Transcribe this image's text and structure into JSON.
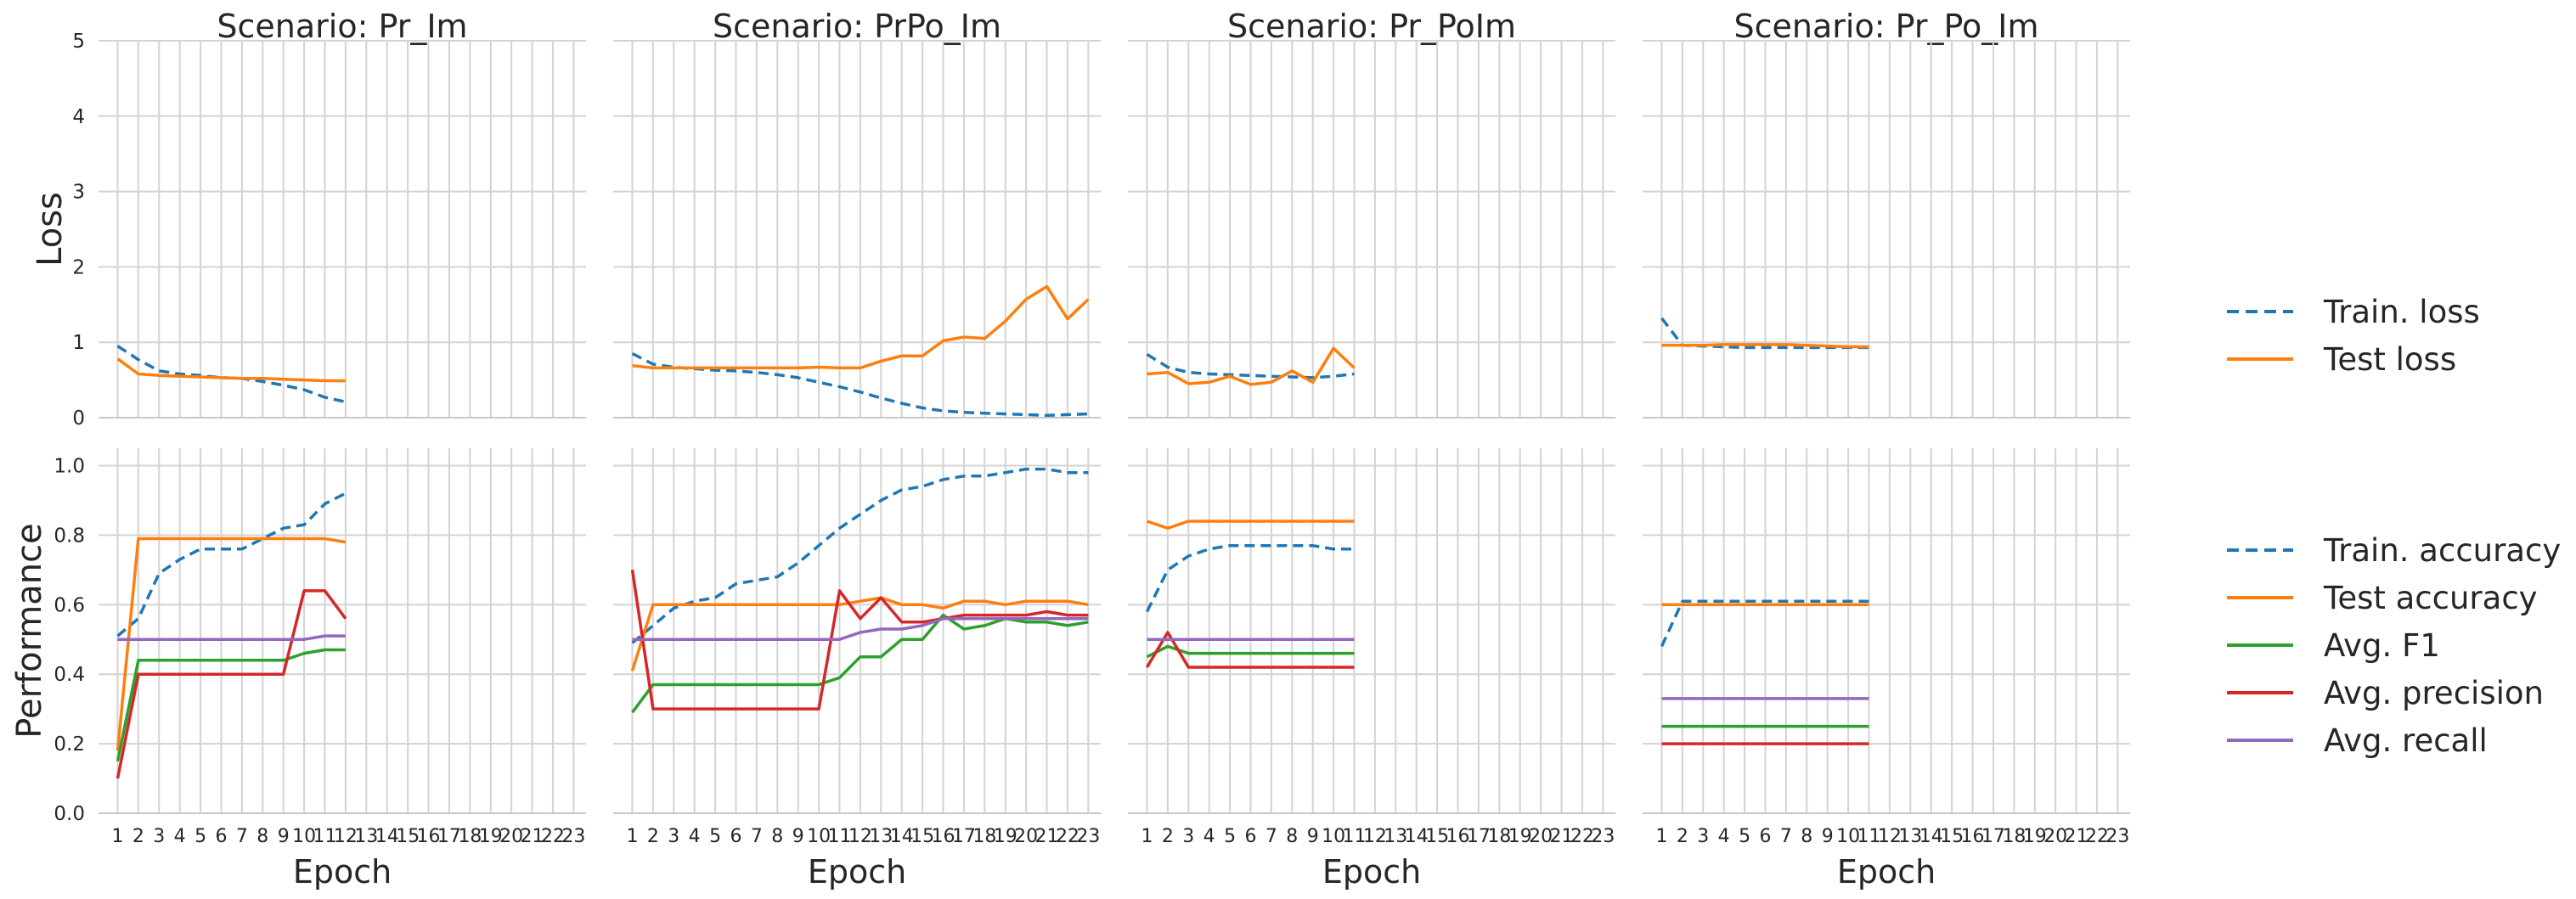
{
  "chart_data": {
    "type": "line",
    "grid": true,
    "x_ticks": [
      "1",
      "2",
      "3",
      "4",
      "5",
      "6",
      "7",
      "8",
      "9",
      "10",
      "11",
      "12",
      "13",
      "14",
      "15",
      "16",
      "17",
      "18",
      "19",
      "20",
      "21",
      "22",
      "23"
    ],
    "xlabel": "Epoch",
    "rows": [
      {
        "ylabel": "Loss",
        "ylim": [
          0,
          5
        ],
        "yticks": [
          "0",
          "1",
          "2",
          "3",
          "4",
          "5"
        ]
      },
      {
        "ylabel": "Performance",
        "ylim": [
          0,
          1.05
        ],
        "yticks": [
          "0.0",
          "0.2",
          "0.4",
          "0.6",
          "0.8",
          "1.0"
        ]
      }
    ],
    "colors": {
      "blue": "#1f77b4",
      "orange": "#ff7f0e",
      "green": "#2ca02c",
      "red": "#d62728",
      "purple": "#9467bd"
    },
    "legends": [
      {
        "items": [
          {
            "label": "Train. loss",
            "color": "#1f77b4",
            "dashed": true
          },
          {
            "label": "Test loss",
            "color": "#ff7f0e",
            "dashed": false
          }
        ]
      },
      {
        "items": [
          {
            "label": "Train. accuracy",
            "color": "#1f77b4",
            "dashed": true
          },
          {
            "label": "Test accuracy",
            "color": "#ff7f0e",
            "dashed": false
          },
          {
            "label": "Avg. F1",
            "color": "#2ca02c",
            "dashed": false
          },
          {
            "label": "Avg. precision",
            "color": "#d62728",
            "dashed": false
          },
          {
            "label": "Avg. recall",
            "color": "#9467bd",
            "dashed": false
          }
        ]
      }
    ],
    "panels": [
      {
        "title": "Scenario: Pr_Im",
        "loss": {
          "Train. loss": [
            0.95,
            0.77,
            0.62,
            0.58,
            0.56,
            0.53,
            0.52,
            0.48,
            0.43,
            0.37,
            0.27,
            0.21
          ],
          "Test loss": [
            0.78,
            0.58,
            0.56,
            0.55,
            0.54,
            0.53,
            0.52,
            0.52,
            0.51,
            0.5,
            0.49,
            0.49
          ]
        },
        "performance": {
          "Train. accuracy": [
            0.51,
            0.56,
            0.69,
            0.73,
            0.76,
            0.76,
            0.76,
            0.79,
            0.82,
            0.83,
            0.89,
            0.92
          ],
          "Test accuracy": [
            0.18,
            0.79,
            0.79,
            0.79,
            0.79,
            0.79,
            0.79,
            0.79,
            0.79,
            0.79,
            0.79,
            0.78
          ],
          "Avg. F1": [
            0.15,
            0.44,
            0.44,
            0.44,
            0.44,
            0.44,
            0.44,
            0.44,
            0.44,
            0.46,
            0.47,
            0.47
          ],
          "Avg. precision": [
            0.1,
            0.4,
            0.4,
            0.4,
            0.4,
            0.4,
            0.4,
            0.4,
            0.4,
            0.64,
            0.64,
            0.56
          ],
          "Avg. recall": [
            0.5,
            0.5,
            0.5,
            0.5,
            0.5,
            0.5,
            0.5,
            0.5,
            0.5,
            0.5,
            0.51,
            0.51
          ]
        }
      },
      {
        "title": "Scenario: PrPo_Im",
        "loss": {
          "Train. loss": [
            0.85,
            0.71,
            0.67,
            0.65,
            0.63,
            0.62,
            0.6,
            0.57,
            0.53,
            0.47,
            0.41,
            0.34,
            0.26,
            0.19,
            0.13,
            0.09,
            0.07,
            0.06,
            0.05,
            0.04,
            0.03,
            0.04,
            0.05
          ],
          "Test loss": [
            0.69,
            0.66,
            0.66,
            0.66,
            0.66,
            0.66,
            0.66,
            0.66,
            0.66,
            0.67,
            0.66,
            0.66,
            0.75,
            0.82,
            0.82,
            1.02,
            1.07,
            1.05,
            1.28,
            1.57,
            1.74,
            1.31,
            1.57
          ]
        },
        "performance": {
          "Train. accuracy": [
            0.49,
            0.54,
            0.59,
            0.61,
            0.62,
            0.66,
            0.67,
            0.68,
            0.72,
            0.77,
            0.82,
            0.86,
            0.9,
            0.93,
            0.94,
            0.96,
            0.97,
            0.97,
            0.98,
            0.99,
            0.99,
            0.98,
            0.98
          ],
          "Test accuracy": [
            0.41,
            0.6,
            0.6,
            0.6,
            0.6,
            0.6,
            0.6,
            0.6,
            0.6,
            0.6,
            0.6,
            0.61,
            0.62,
            0.6,
            0.6,
            0.59,
            0.61,
            0.61,
            0.6,
            0.61,
            0.61,
            0.61,
            0.6
          ],
          "Avg. F1": [
            0.29,
            0.37,
            0.37,
            0.37,
            0.37,
            0.37,
            0.37,
            0.37,
            0.37,
            0.37,
            0.39,
            0.45,
            0.45,
            0.5,
            0.5,
            0.57,
            0.53,
            0.54,
            0.56,
            0.55,
            0.55,
            0.54,
            0.55
          ],
          "Avg. precision": [
            0.7,
            0.3,
            0.3,
            0.3,
            0.3,
            0.3,
            0.3,
            0.3,
            0.3,
            0.3,
            0.64,
            0.56,
            0.62,
            0.55,
            0.55,
            0.56,
            0.57,
            0.57,
            0.57,
            0.57,
            0.58,
            0.57,
            0.57
          ],
          "Avg. recall": [
            0.5,
            0.5,
            0.5,
            0.5,
            0.5,
            0.5,
            0.5,
            0.5,
            0.5,
            0.5,
            0.5,
            0.52,
            0.53,
            0.53,
            0.54,
            0.56,
            0.56,
            0.56,
            0.56,
            0.56,
            0.56,
            0.56,
            0.56
          ]
        }
      },
      {
        "title": "Scenario: Pr_PoIm",
        "loss": {
          "Train. loss": [
            0.84,
            0.67,
            0.6,
            0.58,
            0.57,
            0.56,
            0.55,
            0.54,
            0.53,
            0.55,
            0.58
          ],
          "Test loss": [
            0.58,
            0.6,
            0.45,
            0.47,
            0.55,
            0.44,
            0.47,
            0.62,
            0.47,
            0.92,
            0.66
          ]
        },
        "performance": {
          "Train. accuracy": [
            0.58,
            0.7,
            0.74,
            0.76,
            0.77,
            0.77,
            0.77,
            0.77,
            0.77,
            0.76,
            0.76
          ],
          "Test accuracy": [
            0.84,
            0.82,
            0.84,
            0.84,
            0.84,
            0.84,
            0.84,
            0.84,
            0.84,
            0.84,
            0.84
          ],
          "Avg. F1": [
            0.45,
            0.48,
            0.46,
            0.46,
            0.46,
            0.46,
            0.46,
            0.46,
            0.46,
            0.46,
            0.46
          ],
          "Avg. precision": [
            0.42,
            0.52,
            0.42,
            0.42,
            0.42,
            0.42,
            0.42,
            0.42,
            0.42,
            0.42,
            0.42
          ],
          "Avg. recall": [
            0.5,
            0.5,
            0.5,
            0.5,
            0.5,
            0.5,
            0.5,
            0.5,
            0.5,
            0.5,
            0.5
          ]
        }
      },
      {
        "title": "Scenario: Pr_Po_Im",
        "loss": {
          "Train. loss": [
            1.32,
            0.96,
            0.95,
            0.94,
            0.93,
            0.93,
            0.93,
            0.93,
            0.93,
            0.93,
            0.93
          ],
          "Test loss": [
            0.96,
            0.96,
            0.96,
            0.97,
            0.97,
            0.97,
            0.97,
            0.96,
            0.95,
            0.94,
            0.94
          ]
        },
        "performance": {
          "Train. accuracy": [
            0.48,
            0.61,
            0.61,
            0.61,
            0.61,
            0.61,
            0.61,
            0.61,
            0.61,
            0.61,
            0.61
          ],
          "Test accuracy": [
            0.6,
            0.6,
            0.6,
            0.6,
            0.6,
            0.6,
            0.6,
            0.6,
            0.6,
            0.6,
            0.6
          ],
          "Avg. F1": [
            0.25,
            0.25,
            0.25,
            0.25,
            0.25,
            0.25,
            0.25,
            0.25,
            0.25,
            0.25,
            0.25
          ],
          "Avg. precision": [
            0.2,
            0.2,
            0.2,
            0.2,
            0.2,
            0.2,
            0.2,
            0.2,
            0.2,
            0.2,
            0.2
          ],
          "Avg. recall": [
            0.33,
            0.33,
            0.33,
            0.33,
            0.33,
            0.33,
            0.33,
            0.33,
            0.33,
            0.33,
            0.33
          ]
        }
      }
    ]
  }
}
